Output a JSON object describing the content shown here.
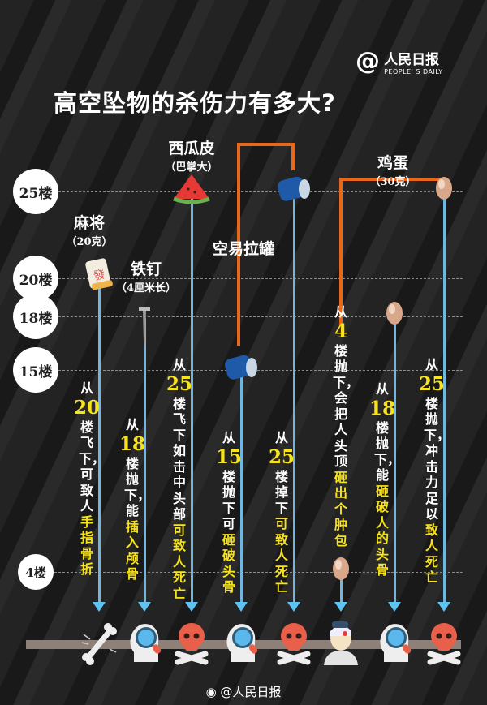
{
  "title": "高空坠物的杀伤力有多大?",
  "logo": {
    "cn": "人民日报",
    "en": "PEOPLE' S DAILY"
  },
  "floors": [
    {
      "label": "25楼",
      "level": 25
    },
    {
      "label": "20楼",
      "level": 20
    },
    {
      "label": "18楼",
      "level": 18
    },
    {
      "label": "15楼",
      "level": 15
    },
    {
      "label": "4楼",
      "level": 4
    }
  ],
  "items": {
    "mahjong": {
      "name": "麻将",
      "sub": "（20克）"
    },
    "nail": {
      "name": "铁钉",
      "sub": "（4厘米长）"
    },
    "watermelon": {
      "name": "西瓜皮",
      "sub": "（巴掌大）"
    },
    "can": {
      "name": "空易拉罐"
    },
    "egg": {
      "name": "鸡蛋",
      "sub": "（30克）"
    }
  },
  "columns": [
    {
      "object": "mahjong",
      "from_floor": 20,
      "outcome_icon": "broken-bone-icon",
      "segments": [
        {
          "t": "从",
          "c": "white"
        },
        {
          "t": "20",
          "c": "num"
        },
        {
          "t": "楼飞下，可致人",
          "c": "white"
        },
        {
          "t": "手指骨折",
          "c": "yellow"
        }
      ]
    },
    {
      "object": "nail",
      "from_floor": 18,
      "outcome_icon": "head-scan-icon",
      "segments": [
        {
          "t": "从",
          "c": "white"
        },
        {
          "t": "18",
          "c": "num"
        },
        {
          "t": "楼抛下，能",
          "c": "white"
        },
        {
          "t": "插入颅骨",
          "c": "yellow"
        }
      ]
    },
    {
      "object": "watermelon",
      "from_floor": 25,
      "outcome_icon": "skull-icon",
      "segments": [
        {
          "t": "从",
          "c": "white"
        },
        {
          "t": "25",
          "c": "num"
        },
        {
          "t": "楼飞下如击中头部",
          "c": "white"
        },
        {
          "t": "可致人死亡",
          "c": "yellow"
        }
      ]
    },
    {
      "object": "can",
      "from_floor": 15,
      "outcome_icon": "head-scan-icon",
      "segments": [
        {
          "t": "从",
          "c": "white"
        },
        {
          "t": "15",
          "c": "num"
        },
        {
          "t": "楼抛下可",
          "c": "white"
        },
        {
          "t": "砸破头骨",
          "c": "yellow"
        }
      ]
    },
    {
      "object": "can",
      "from_floor": 25,
      "outcome_icon": "skull-icon",
      "segments": [
        {
          "t": "从",
          "c": "white"
        },
        {
          "t": "25",
          "c": "num"
        },
        {
          "t": "楼掉下",
          "c": "white"
        },
        {
          "t": "可致人死亡",
          "c": "yellow"
        }
      ]
    },
    {
      "object": "egg",
      "from_floor": 4,
      "outcome_icon": "injured-head-icon",
      "segments": [
        {
          "t": "从",
          "c": "white"
        },
        {
          "t": "4",
          "c": "num"
        },
        {
          "t": "楼抛下，会把人头顶",
          "c": "white"
        },
        {
          "t": "砸出个肿包",
          "c": "yellow"
        }
      ]
    },
    {
      "object": "egg",
      "from_floor": 18,
      "outcome_icon": "head-scan-icon",
      "segments": [
        {
          "t": "从",
          "c": "white"
        },
        {
          "t": "18",
          "c": "num"
        },
        {
          "t": "楼抛下，能",
          "c": "white"
        },
        {
          "t": "砸破人的头骨",
          "c": "yellow"
        }
      ]
    },
    {
      "object": "egg",
      "from_floor": 25,
      "outcome_icon": "skull-icon",
      "segments": [
        {
          "t": "从",
          "c": "white"
        },
        {
          "t": "25",
          "c": "num"
        },
        {
          "t": "楼抛下，冲击力足以",
          "c": "white"
        },
        {
          "t": "致人死亡",
          "c": "yellow"
        }
      ]
    }
  ],
  "footer": "@人民日报",
  "colors": {
    "accent_yellow": "#f7e21b",
    "line_blue": "#6fb7e0",
    "bracket_orange": "#e8671a",
    "skull_red": "#e8604a"
  }
}
